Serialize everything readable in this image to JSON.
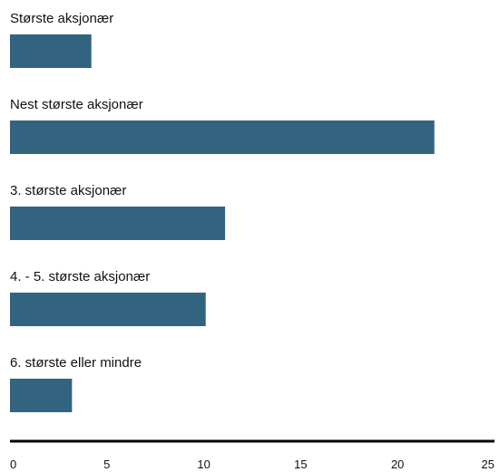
{
  "chart_data": {
    "type": "bar",
    "orientation": "horizontal",
    "categories": [
      "Største aksjonær",
      "Nest største aksjonær",
      "3. største aksjonær",
      "4. - 5. største aksjonær",
      "6. største eller mindre"
    ],
    "values": [
      4.2,
      21.9,
      11.1,
      10.1,
      3.2
    ],
    "color": "#33647f",
    "xlim": [
      0,
      25
    ],
    "xticks": [
      0,
      5,
      10,
      15,
      20,
      25
    ]
  }
}
